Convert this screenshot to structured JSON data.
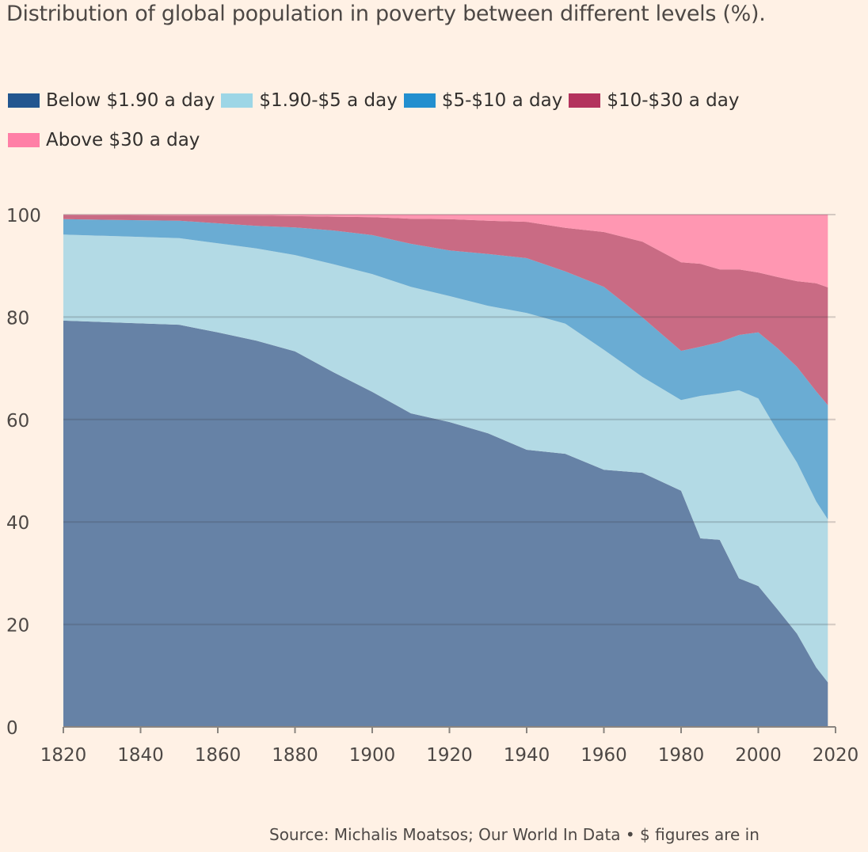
{
  "chart_data": {
    "type": "area",
    "stacked": true,
    "title": "Distribution of global population in poverty between different levels (%).",
    "xlabel": "",
    "ylabel": "",
    "xlim": [
      1820,
      2020
    ],
    "ylim": [
      0,
      100
    ],
    "grid": true,
    "legend_placement": "top-left",
    "x_ticks": [
      "1820",
      "1840",
      "1860",
      "1880",
      "1900",
      "1920",
      "1940",
      "1960",
      "1980",
      "2000",
      "2020"
    ],
    "y_ticks": [
      "0",
      "20",
      "40",
      "60",
      "80",
      "100"
    ],
    "x": [
      1820,
      1850,
      1860,
      1870,
      1880,
      1890,
      1900,
      1910,
      1920,
      1930,
      1940,
      1950,
      1960,
      1970,
      1980,
      1985,
      1990,
      1995,
      2000,
      2005,
      2010,
      2015,
      2018
    ],
    "series": [
      {
        "name": "Below $1.90 a day",
        "color": "#6682a6",
        "legend_color": "#22568f",
        "values": [
          79.3,
          78.5,
          77.0,
          75.4,
          73.3,
          69.2,
          65.4,
          61.2,
          59.5,
          57.3,
          54.1,
          53.3,
          50.2,
          49.6,
          46.1,
          36.8,
          36.5,
          29.0,
          27.5,
          22.9,
          18.2,
          11.6,
          8.7
        ]
      },
      {
        "name": "$1.90-$5 a day",
        "color": "#b3dae5",
        "legend_color": "#9dd6e6",
        "values": [
          16.8,
          16.9,
          17.4,
          18.0,
          18.8,
          21.1,
          23.0,
          24.7,
          24.6,
          24.9,
          26.7,
          25.4,
          23.4,
          18.7,
          17.7,
          27.8,
          28.6,
          36.7,
          36.6,
          34.8,
          33.4,
          32.4,
          31.8
        ]
      },
      {
        "name": "$5-$10 a day",
        "color": "#6aacd3",
        "legend_color": "#228fcf",
        "values": [
          3.0,
          3.4,
          3.9,
          4.4,
          5.4,
          6.6,
          7.6,
          8.4,
          8.9,
          10.1,
          10.7,
          10.2,
          12.3,
          11.6,
          9.6,
          9.6,
          10.0,
          10.8,
          12.9,
          16.2,
          18.7,
          21.5,
          22.3
        ]
      },
      {
        "name": "$10-$30 a day",
        "color": "#c96b84",
        "legend_color": "#b3335d",
        "values": [
          0.8,
          1.0,
          1.5,
          2.0,
          2.2,
          2.7,
          3.5,
          4.9,
          6.1,
          6.5,
          7.1,
          8.5,
          10.7,
          14.8,
          17.3,
          16.2,
          14.2,
          12.8,
          11.7,
          13.9,
          16.7,
          21.1,
          23.0
        ]
      },
      {
        "name": "Above $30 a day",
        "color": "#ff97b2",
        "legend_color": "#ff7fa6",
        "values": [
          0.1,
          0.2,
          0.2,
          0.2,
          0.3,
          0.4,
          0.5,
          0.8,
          0.9,
          1.2,
          1.4,
          2.6,
          3.4,
          5.3,
          9.3,
          9.6,
          10.7,
          10.7,
          11.3,
          12.2,
          13.0,
          13.4,
          14.2
        ]
      }
    ],
    "source": "Source: Michalis Moatsos; Our World In Data • $ figures are in"
  }
}
